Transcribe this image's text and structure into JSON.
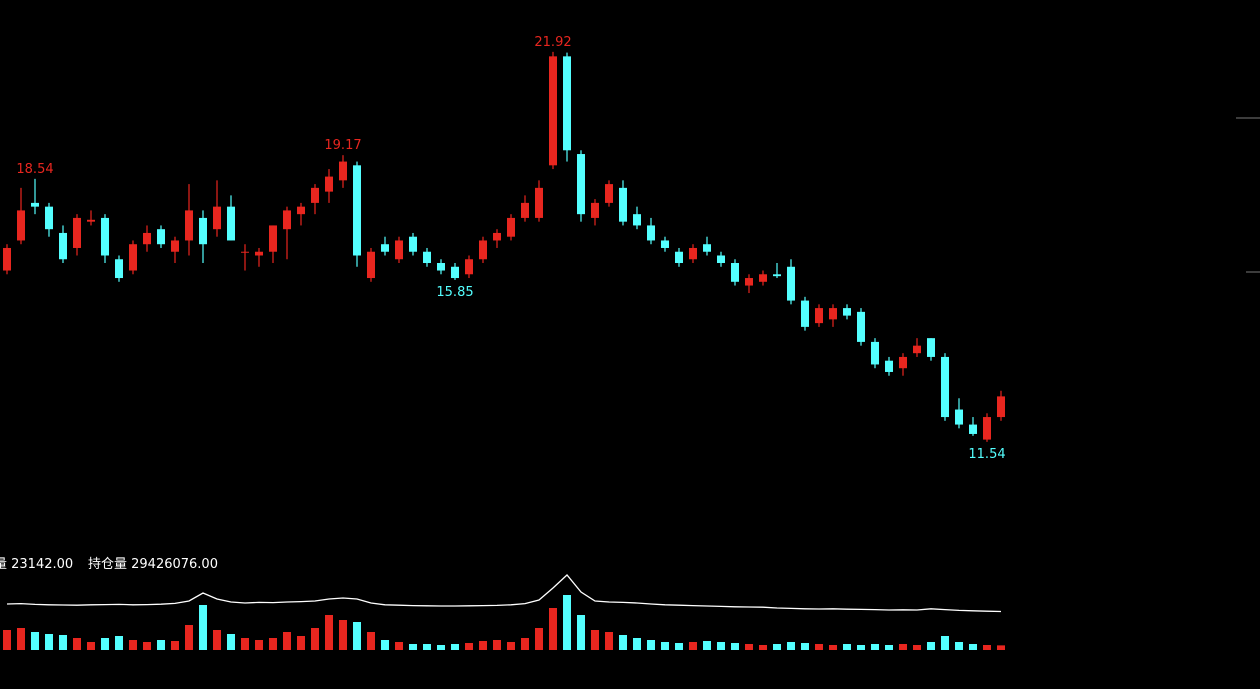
{
  "chart_data": {
    "type": "candlestick",
    "up_color": "#e8261f",
    "down_color": "#54ffff",
    "ylim": [
      9.46,
      23.3
    ],
    "open": [
      16.1,
      16.9,
      17.9,
      17.8,
      17.1,
      16.7,
      17.4,
      17.5,
      16.4,
      16.1,
      16.8,
      17.2,
      16.6,
      16.9,
      17.5,
      17.2,
      17.8,
      16.6,
      16.5,
      16.6,
      17.2,
      17.6,
      17.9,
      18.2,
      18.5,
      18.9,
      15.9,
      16.8,
      16.4,
      17.0,
      16.6,
      16.3,
      16.2,
      16.0,
      16.4,
      16.9,
      17.0,
      17.5,
      17.5,
      18.9,
      21.8,
      19.2,
      17.5,
      17.9,
      18.3,
      17.6,
      17.3,
      16.9,
      16.6,
      16.4,
      16.8,
      16.5,
      16.3,
      15.7,
      15.8,
      16.0,
      16.2,
      15.3,
      14.7,
      14.8,
      15.1,
      15.0,
      14.2,
      13.7,
      13.5,
      13.9,
      14.3,
      13.8,
      12.4,
      12.0,
      11.6,
      12.2
    ],
    "high": [
      16.8,
      18.3,
      18.54,
      17.9,
      17.3,
      17.6,
      17.7,
      17.6,
      16.5,
      16.9,
      17.3,
      17.3,
      17.0,
      18.4,
      17.7,
      18.5,
      18.1,
      16.8,
      16.7,
      17.3,
      17.8,
      17.9,
      18.4,
      18.8,
      19.17,
      19.0,
      16.7,
      17.0,
      17.0,
      17.1,
      16.7,
      16.4,
      16.3,
      16.5,
      17.0,
      17.2,
      17.6,
      18.1,
      18.5,
      21.92,
      21.9,
      19.3,
      18.0,
      18.5,
      18.5,
      17.8,
      17.5,
      17.0,
      16.7,
      16.8,
      17.0,
      16.6,
      16.4,
      16.0,
      16.1,
      16.3,
      16.4,
      15.4,
      15.2,
      15.2,
      15.2,
      15.1,
      14.3,
      13.8,
      13.9,
      14.3,
      14.3,
      13.9,
      12.7,
      12.2,
      12.3,
      12.9
    ],
    "low": [
      16.0,
      16.8,
      17.6,
      17.0,
      16.3,
      16.5,
      17.3,
      16.3,
      15.8,
      16.0,
      16.6,
      16.7,
      16.3,
      16.5,
      16.3,
      17.0,
      16.9,
      16.1,
      16.2,
      16.3,
      16.4,
      17.3,
      17.6,
      17.9,
      18.3,
      16.2,
      15.8,
      16.5,
      16.3,
      16.5,
      16.2,
      16.0,
      15.85,
      15.9,
      16.3,
      16.7,
      16.9,
      17.4,
      17.4,
      18.8,
      19.0,
      17.4,
      17.3,
      17.8,
      17.3,
      17.2,
      16.8,
      16.6,
      16.2,
      16.3,
      16.5,
      16.2,
      15.7,
      15.5,
      15.7,
      15.9,
      15.2,
      14.5,
      14.6,
      14.6,
      14.8,
      14.1,
      13.5,
      13.3,
      13.3,
      13.8,
      13.7,
      12.1,
      11.9,
      11.7,
      11.54,
      12.1
    ],
    "close": [
      16.7,
      17.7,
      17.8,
      17.2,
      16.4,
      17.5,
      17.45,
      16.5,
      15.9,
      16.8,
      17.1,
      16.8,
      16.9,
      17.7,
      16.8,
      17.8,
      16.9,
      16.6,
      16.6,
      17.3,
      17.7,
      17.8,
      18.3,
      18.6,
      19.0,
      16.5,
      16.6,
      16.6,
      16.9,
      16.6,
      16.3,
      16.1,
      15.9,
      16.4,
      16.9,
      17.1,
      17.5,
      17.9,
      18.3,
      21.8,
      19.3,
      17.6,
      17.9,
      18.4,
      17.4,
      17.3,
      16.9,
      16.7,
      16.3,
      16.7,
      16.6,
      16.3,
      15.8,
      15.9,
      16.0,
      15.95,
      15.3,
      14.6,
      15.1,
      15.1,
      14.9,
      14.2,
      13.6,
      13.4,
      13.8,
      14.1,
      13.8,
      12.2,
      12.0,
      11.75,
      12.2,
      12.75
    ],
    "annotations": [
      {
        "text": "18.54",
        "side": "high"
      },
      {
        "text": "19.17",
        "side": "high"
      },
      {
        "text": "21.92",
        "side": "high"
      },
      {
        "text": "15.85",
        "side": "low"
      },
      {
        "text": "11.54",
        "side": "low"
      }
    ],
    "volume_label": "量 23142.00",
    "open_interest_label": "持仓量 29426076.00",
    "volume": {
      "ylim": [
        0,
        300000
      ],
      "values": [
        100000,
        110000,
        90000,
        80000,
        75000,
        60000,
        40000,
        60000,
        70000,
        50000,
        40000,
        50000,
        45000,
        125000,
        225000,
        100000,
        80000,
        60000,
        50000,
        60000,
        90000,
        70000,
        110000,
        175000,
        150000,
        140000,
        90000,
        50000,
        40000,
        30000,
        30000,
        25000,
        30000,
        35000,
        45000,
        50000,
        40000,
        60000,
        110000,
        210000,
        275000,
        175000,
        100000,
        90000,
        75000,
        60000,
        50000,
        40000,
        35000,
        40000,
        45000,
        40000,
        35000,
        30000,
        25000,
        30000,
        40000,
        35000,
        30000,
        25000,
        30000,
        25000,
        30000,
        25000,
        30000,
        25000,
        40000,
        70000,
        40000,
        30000,
        25000,
        23142
      ]
    },
    "open_interest": {
      "color": "#ffffff",
      "ylim": [
        27500000,
        31500000
      ],
      "values": [
        29800000,
        29820000,
        29780000,
        29760000,
        29750000,
        29740000,
        29760000,
        29770000,
        29780000,
        29760000,
        29770000,
        29790000,
        29830000,
        29950000,
        30350000,
        30050000,
        29900000,
        29850000,
        29880000,
        29870000,
        29900000,
        29920000,
        29950000,
        30050000,
        30100000,
        30050000,
        29850000,
        29760000,
        29740000,
        29720000,
        29710000,
        29700000,
        29700000,
        29710000,
        29720000,
        29730000,
        29760000,
        29820000,
        30000000,
        30600000,
        31250000,
        30400000,
        29950000,
        29900000,
        29880000,
        29850000,
        29800000,
        29760000,
        29740000,
        29720000,
        29700000,
        29680000,
        29660000,
        29650000,
        29640000,
        29600000,
        29580000,
        29560000,
        29550000,
        29560000,
        29540000,
        29530000,
        29520000,
        29500000,
        29510000,
        29500000,
        29560000,
        29520000,
        29480000,
        29460000,
        29440000,
        29426076
      ]
    }
  }
}
